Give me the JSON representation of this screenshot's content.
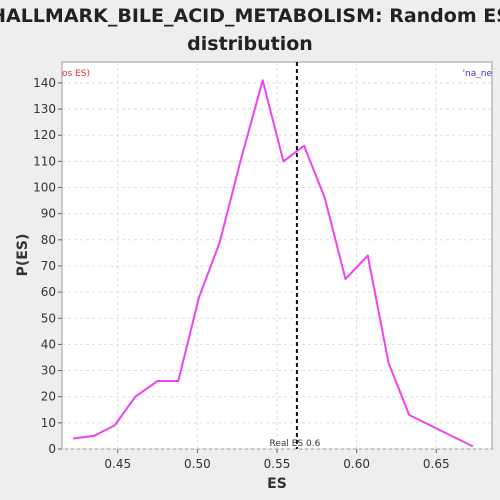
{
  "chart_data": {
    "type": "line",
    "title_lines": [
      "HALLMARK_BILE_ACID_METABOLISM: Random ES",
      "distribution"
    ],
    "xlabel": "ES",
    "ylabel": "P(ES)",
    "xlim": [
      0.415,
      0.685
    ],
    "ylim": [
      0,
      148
    ],
    "xticks": [
      0.45,
      0.5,
      0.55,
      0.6,
      0.65
    ],
    "xtick_labels": [
      "0.45",
      "0.50",
      "0.55",
      "0.60",
      "0.65"
    ],
    "yticks": [
      0,
      10,
      20,
      30,
      40,
      50,
      60,
      70,
      80,
      90,
      100,
      110,
      120,
      130,
      140
    ],
    "ytick_labels": [
      "0",
      "10",
      "20",
      "30",
      "40",
      "50",
      "60",
      "70",
      "80",
      "90",
      "100",
      "110",
      "120",
      "130",
      "140"
    ],
    "grid": true,
    "series": [
      {
        "color": "#ee44ee",
        "x": [
          0.422,
          0.435,
          0.448,
          0.461,
          0.475,
          0.488,
          0.501,
          0.514,
          0.527,
          0.541,
          0.554,
          0.567,
          0.58,
          0.593,
          0.607,
          0.62,
          0.633,
          0.673
        ],
        "y": [
          4,
          5,
          9,
          20,
          26,
          26,
          58,
          79,
          110,
          141,
          110,
          116,
          96,
          65,
          74,
          33,
          13,
          1
        ]
      }
    ],
    "real_es": {
      "x": 0.5625,
      "label": "Real ES 0.6",
      "color": "#111111"
    },
    "corner_left_text": "os ES)",
    "corner_left_color": "#dd3333",
    "corner_right_text": "'na_ne",
    "corner_right_color": "#3333cc"
  }
}
